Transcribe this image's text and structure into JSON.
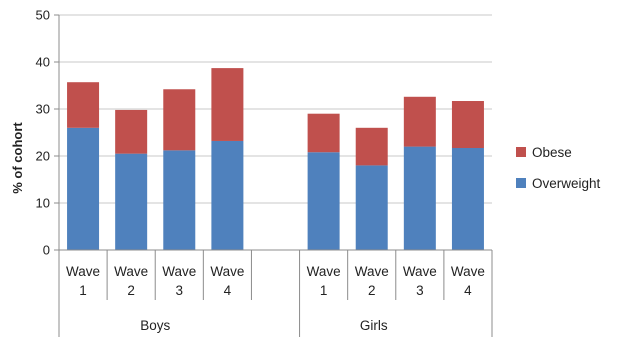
{
  "chart_data": {
    "type": "bar",
    "stacked": true,
    "ylabel": "% of cohort",
    "xlabel": "",
    "title": "",
    "ylim": [
      0,
      50
    ],
    "yticks": [
      0,
      10,
      20,
      30,
      40,
      50
    ],
    "grid": true,
    "legend_position": "right",
    "groups": [
      "Boys",
      "Girls"
    ],
    "categories": [
      {
        "group": "Boys",
        "line1": "Wave",
        "line2": "1"
      },
      {
        "group": "Boys",
        "line1": "Wave",
        "line2": "2"
      },
      {
        "group": "Boys",
        "line1": "Wave",
        "line2": "3"
      },
      {
        "group": "Boys",
        "line1": "Wave",
        "line2": "4"
      },
      {
        "group": "Girls",
        "line1": "Wave",
        "line2": "1"
      },
      {
        "group": "Girls",
        "line1": "Wave",
        "line2": "2"
      },
      {
        "group": "Girls",
        "line1": "Wave",
        "line2": "3"
      },
      {
        "group": "Girls",
        "line1": "Wave",
        "line2": "4"
      }
    ],
    "series": [
      {
        "name": "Overweight",
        "color": "#4f81bd",
        "values": [
          26,
          20.5,
          21.2,
          23.2,
          20.8,
          18,
          22,
          21.7
        ]
      },
      {
        "name": "Obese",
        "color": "#c0504d",
        "values": [
          9.7,
          9.3,
          13,
          15.5,
          8.2,
          8,
          10.6,
          10
        ]
      }
    ],
    "legend_order": [
      "Obese",
      "Overweight"
    ]
  }
}
